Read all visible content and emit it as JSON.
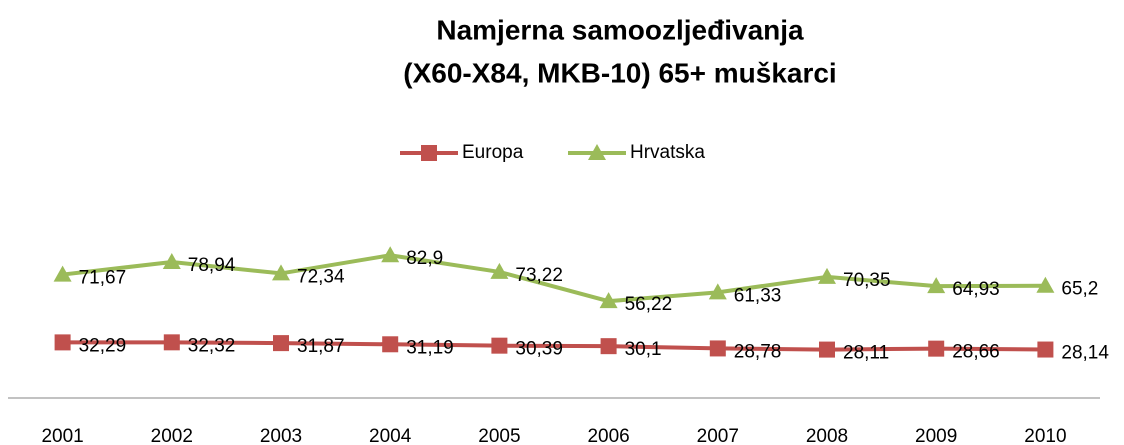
{
  "chart_data": {
    "type": "line",
    "title": [
      "Namjerna samoozljeđivanja",
      "(X60-X84, MKB-10) 65+ muškarci"
    ],
    "categories": [
      "2001",
      "2002",
      "2003",
      "2004",
      "2005",
      "2006",
      "2007",
      "2008",
      "2009",
      "2010"
    ],
    "series": [
      {
        "name": "Europa",
        "color": "#c0504d",
        "marker": "square",
        "values": [
          32.29,
          32.32,
          31.87,
          31.19,
          30.39,
          30.1,
          28.78,
          28.11,
          28.66,
          28.14
        ],
        "value_labels": [
          "32,29",
          "32,32",
          "31,87",
          "31,19",
          "30,39",
          "30,1",
          "28,78",
          "28,11",
          "28,66",
          "28,14"
        ]
      },
      {
        "name": "Hrvatska",
        "color": "#9bbb59",
        "marker": "triangle",
        "values": [
          71.67,
          78.94,
          72.34,
          82.9,
          73.22,
          56.22,
          61.33,
          70.35,
          64.93,
          65.2
        ],
        "value_labels": [
          "71,67",
          "78,94",
          "72,34",
          "82,9",
          "73,22",
          "56,22",
          "61,33",
          "70,35",
          "64,93",
          "65,2"
        ]
      }
    ],
    "ylim": [
      0,
      90
    ],
    "legend": "top"
  }
}
